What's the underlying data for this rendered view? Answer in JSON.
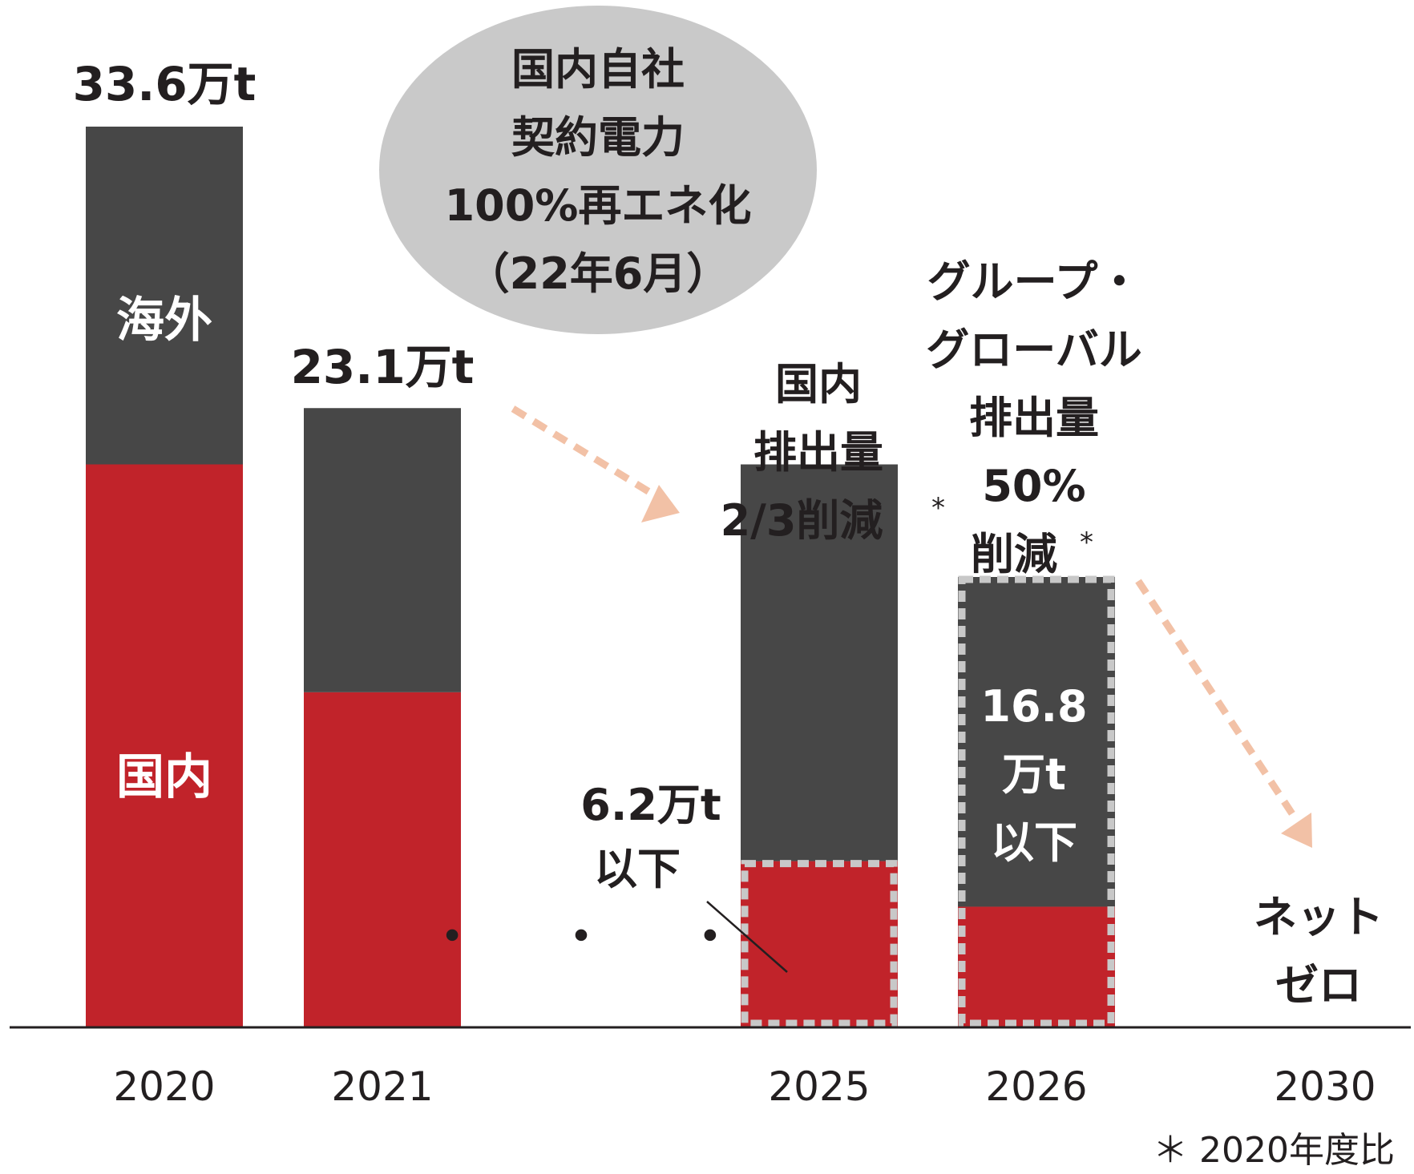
{
  "chart_data": {
    "type": "bar",
    "stacked": true,
    "categories": [
      "2020",
      "2021",
      "2025",
      "2026",
      "2030"
    ],
    "series": [
      {
        "name": "国内",
        "color": "#c1232a",
        "values": [
          21.0,
          12.5,
          6.2,
          4.5,
          0
        ]
      },
      {
        "name": "海外",
        "color": "#474747",
        "values": [
          12.6,
          10.6,
          14.8,
          12.3,
          0
        ]
      }
    ],
    "ylim": [
      0,
      36
    ],
    "grid": false,
    "legend": "inside bars",
    "totals": [
      "33.6万t",
      "23.1万t"
    ],
    "annotations": {
      "target_2025_line1": "6.2万t",
      "target_2025_line2": "以下",
      "target_2026_line1": "16.8",
      "target_2026_line2": "万t",
      "target_2026_line3": "以下",
      "domestic_title_1": "国内",
      "domestic_title_2": "排出量",
      "domestic_title_3": "2/3削減",
      "group_title_1": "グループ・",
      "group_title_2": "グローバル",
      "group_title_3": "排出量",
      "group_title_4": "50%",
      "group_title_5": "削減",
      "asterisk": "*",
      "bubble_line1": "国内自社",
      "bubble_line2": "契約電力",
      "bubble_line3": "100%再エネ化",
      "bubble_line4": "（22年6月）",
      "netzero_1": "ネット",
      "netzero_2": "ゼロ",
      "ellipsis": "・ ・ ・",
      "footnote": "＊ 2020年度比"
    },
    "colors": {
      "domestic": "#c1232a",
      "overseas": "#474747",
      "arrow": "#f2c1a6",
      "bubble": "#c9c9c9",
      "dashed_border": "#c8c8c8"
    }
  }
}
